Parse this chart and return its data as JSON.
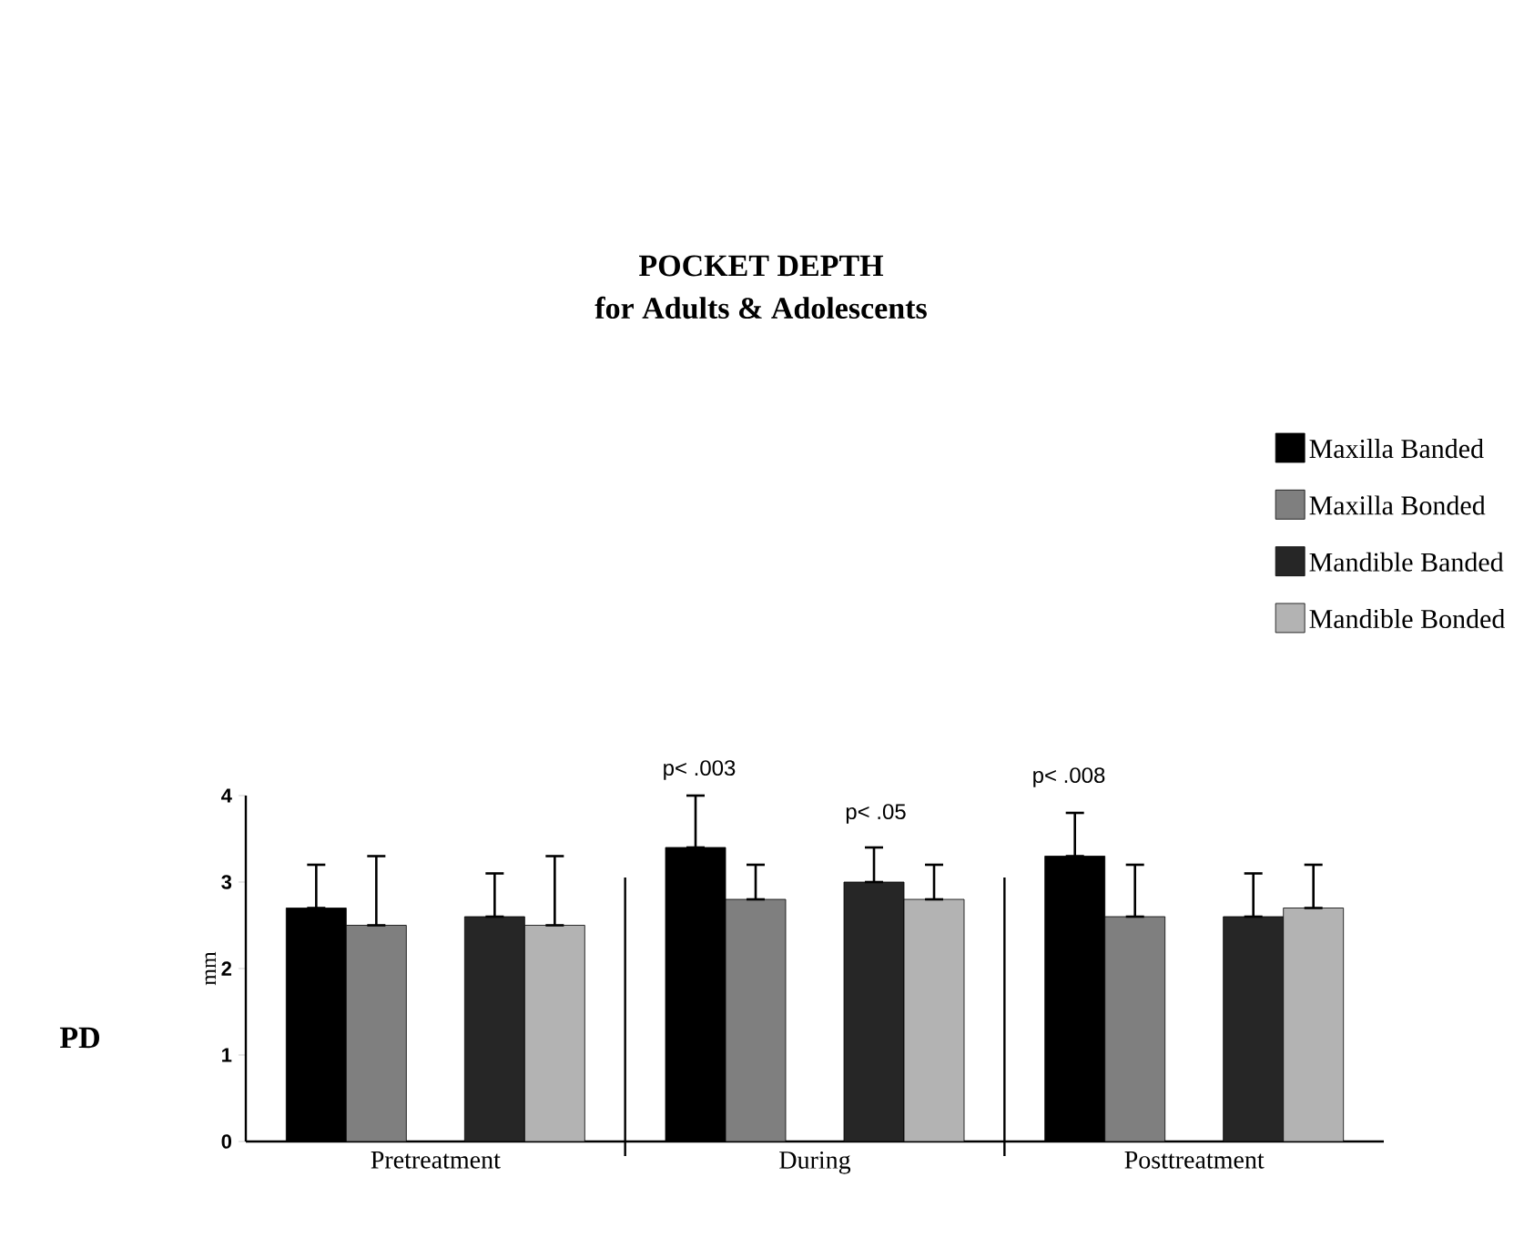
{
  "chart_data": {
    "type": "bar",
    "title": "POCKET DEPTH",
    "subtitle": "for Adults & Adolescents",
    "ylabel": "mm",
    "categories": [
      "Pretreatment",
      "During",
      "Posttreatment"
    ],
    "series": [
      {
        "name": "Maxilla Banded",
        "color": "#000000",
        "values": [
          2.7,
          3.4,
          3.3
        ],
        "errors": [
          [
            2.7,
            3.2
          ],
          [
            3.4,
            4.0
          ],
          [
            3.3,
            3.8
          ]
        ]
      },
      {
        "name": "Maxilla Bonded",
        "color": "#7f7f7f",
        "values": [
          2.5,
          2.8,
          2.6
        ],
        "errors": [
          [
            2.5,
            3.3
          ],
          [
            2.8,
            3.2
          ],
          [
            2.6,
            3.2
          ]
        ]
      },
      {
        "name": "Mandible Banded",
        "color": "#262626",
        "values": [
          2.6,
          3.0,
          2.6
        ],
        "errors": [
          [
            2.6,
            3.1
          ],
          [
            3.0,
            3.4
          ],
          [
            2.6,
            3.1
          ]
        ]
      },
      {
        "name": "Mandible Bonded",
        "color": "#b3b3b3",
        "values": [
          2.5,
          2.8,
          2.7
        ],
        "errors": [
          [
            2.5,
            3.3
          ],
          [
            2.8,
            3.2
          ],
          [
            2.7,
            3.2
          ]
        ]
      }
    ],
    "annotations": [
      "p< .003",
      "p< .05",
      "p< .008",
      "PD"
    ],
    "ylim": [
      0,
      4
    ],
    "yticks": [
      0,
      1,
      2,
      3,
      4
    ],
    "legend": "top right"
  }
}
